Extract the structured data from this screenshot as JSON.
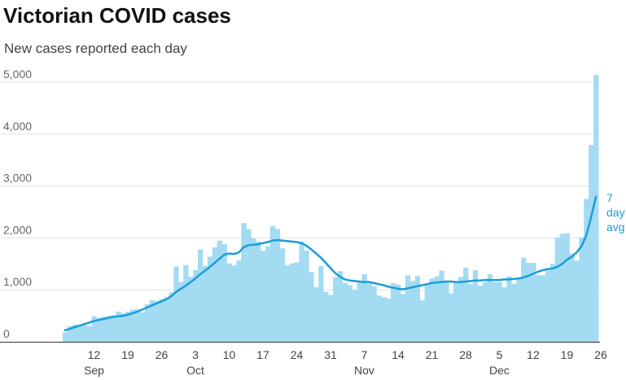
{
  "chart_data": {
    "type": "bar",
    "title": "Victorian COVID cases",
    "subtitle": "New cases reported each day",
    "ylim": [
      0,
      5000
    ],
    "y_ticks": [
      {
        "value": 0,
        "label": "0"
      },
      {
        "value": 1000,
        "label": "1,000"
      },
      {
        "value": 2000,
        "label": "2,000"
      },
      {
        "value": 3000,
        "label": "3,000"
      },
      {
        "value": 4000,
        "label": "4,000"
      },
      {
        "value": 5000,
        "label": "5,000"
      }
    ],
    "x_start_date": "2021-09-06",
    "x_end_date": "2021-12-30",
    "x_ticks": [
      {
        "date": "2021-09-12",
        "label": "12"
      },
      {
        "date": "2021-09-19",
        "label": "19"
      },
      {
        "date": "2021-09-26",
        "label": "26"
      },
      {
        "date": "2021-10-03",
        "label": "3"
      },
      {
        "date": "2021-10-10",
        "label": "10"
      },
      {
        "date": "2021-10-17",
        "label": "17"
      },
      {
        "date": "2021-10-24",
        "label": "24"
      },
      {
        "date": "2021-10-31",
        "label": "31"
      },
      {
        "date": "2021-11-07",
        "label": "7"
      },
      {
        "date": "2021-11-14",
        "label": "14"
      },
      {
        "date": "2021-11-21",
        "label": "21"
      },
      {
        "date": "2021-11-28",
        "label": "28"
      },
      {
        "date": "2021-12-05",
        "label": "5"
      },
      {
        "date": "2021-12-12",
        "label": "12"
      },
      {
        "date": "2021-12-19",
        "label": "19"
      },
      {
        "date": "2021-12-26",
        "label": "26"
      }
    ],
    "month_labels": [
      {
        "date": "2021-09-12",
        "label": "Sep"
      },
      {
        "date": "2021-10-03",
        "label": "Oct"
      },
      {
        "date": "2021-11-07",
        "label": "Nov"
      },
      {
        "date": "2021-12-05",
        "label": "Dec"
      }
    ],
    "bar_values": [
      180,
      300,
      330,
      310,
      330,
      300,
      490,
      460,
      480,
      500,
      510,
      580,
      550,
      580,
      620,
      630,
      570,
      720,
      800,
      780,
      820,
      860,
      950,
      1450,
      1150,
      1480,
      1250,
      1380,
      1780,
      1460,
      1640,
      1820,
      1950,
      1880,
      1510,
      1470,
      1570,
      2290,
      2170,
      1990,
      1930,
      1750,
      1840,
      2230,
      2170,
      1800,
      1470,
      1510,
      1530,
      1930,
      1760,
      1340,
      1050,
      1460,
      960,
      900,
      1240,
      1360,
      1130,
      1090,
      1000,
      1170,
      1300,
      1120,
      1070,
      890,
      860,
      830,
      1130,
      1100,
      920,
      1280,
      1170,
      1270,
      800,
      1110,
      1220,
      1260,
      1370,
      1170,
      930,
      1170,
      1250,
      1430,
      1110,
      1380,
      1080,
      1150,
      1300,
      1150,
      1150,
      1050,
      1260,
      1120,
      1240,
      1620,
      1520,
      1520,
      1280,
      1280,
      1370,
      1500,
      2010,
      2080,
      2090,
      1700,
      1560,
      2010,
      2750,
      3790,
      5140
    ],
    "series": [
      {
        "type": "line",
        "name": "7 day avg",
        "values": [
          220,
          250,
          280,
          310,
          340,
          370,
          400,
          420,
          440,
          460,
          480,
          490,
          500,
          520,
          550,
          580,
          620,
          660,
          700,
          740,
          780,
          820,
          880,
          960,
          1020,
          1080,
          1150,
          1220,
          1300,
          1370,
          1440,
          1520,
          1600,
          1680,
          1700,
          1690,
          1720,
          1820,
          1860,
          1870,
          1880,
          1900,
          1920,
          1950,
          1960,
          1950,
          1940,
          1930,
          1920,
          1900,
          1850,
          1780,
          1700,
          1620,
          1520,
          1420,
          1320,
          1250,
          1200,
          1180,
          1170,
          1160,
          1150,
          1150,
          1130,
          1110,
          1090,
          1060,
          1040,
          1020,
          1010,
          1030,
          1050,
          1070,
          1090,
          1110,
          1130,
          1140,
          1150,
          1160,
          1160,
          1150,
          1150,
          1160,
          1170,
          1180,
          1180,
          1190,
          1190,
          1190,
          1190,
          1200,
          1200,
          1210,
          1220,
          1240,
          1270,
          1310,
          1350,
          1380,
          1400,
          1410,
          1440,
          1500,
          1580,
          1640,
          1720,
          1840,
          2050,
          2400,
          2790
        ],
        "color": "#1a9ed6"
      }
    ],
    "series_label": [
      "7",
      "day",
      "avg"
    ],
    "colors": {
      "bars": "#a3dbf3",
      "line": "#1a9ed6",
      "grid": "#e2e2e2",
      "axis": "#333333"
    }
  }
}
